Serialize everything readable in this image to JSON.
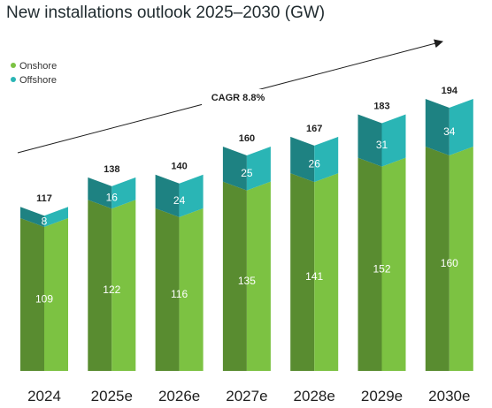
{
  "chart_data": {
    "type": "bar",
    "stacked": true,
    "title": "New installations outlook 2025–2030 (GW)",
    "categories": [
      "2024",
      "2025e",
      "2026e",
      "2027e",
      "2028e",
      "2029e",
      "2030e"
    ],
    "series": [
      {
        "name": "Onshore",
        "values": [
          109,
          122,
          116,
          135,
          141,
          152,
          160
        ],
        "color": "#7cc242"
      },
      {
        "name": "Offshore",
        "values": [
          8,
          16,
          24,
          25,
          26,
          31,
          34
        ],
        "color": "#2ab5b5"
      }
    ],
    "totals": [
      117,
      138,
      140,
      160,
      167,
      183,
      194
    ],
    "annotation": "CAGR 8.8%",
    "legend_position": "top-left",
    "ylim": [
      0,
      194
    ],
    "grid": false,
    "xlabel": "",
    "ylabel": ""
  }
}
